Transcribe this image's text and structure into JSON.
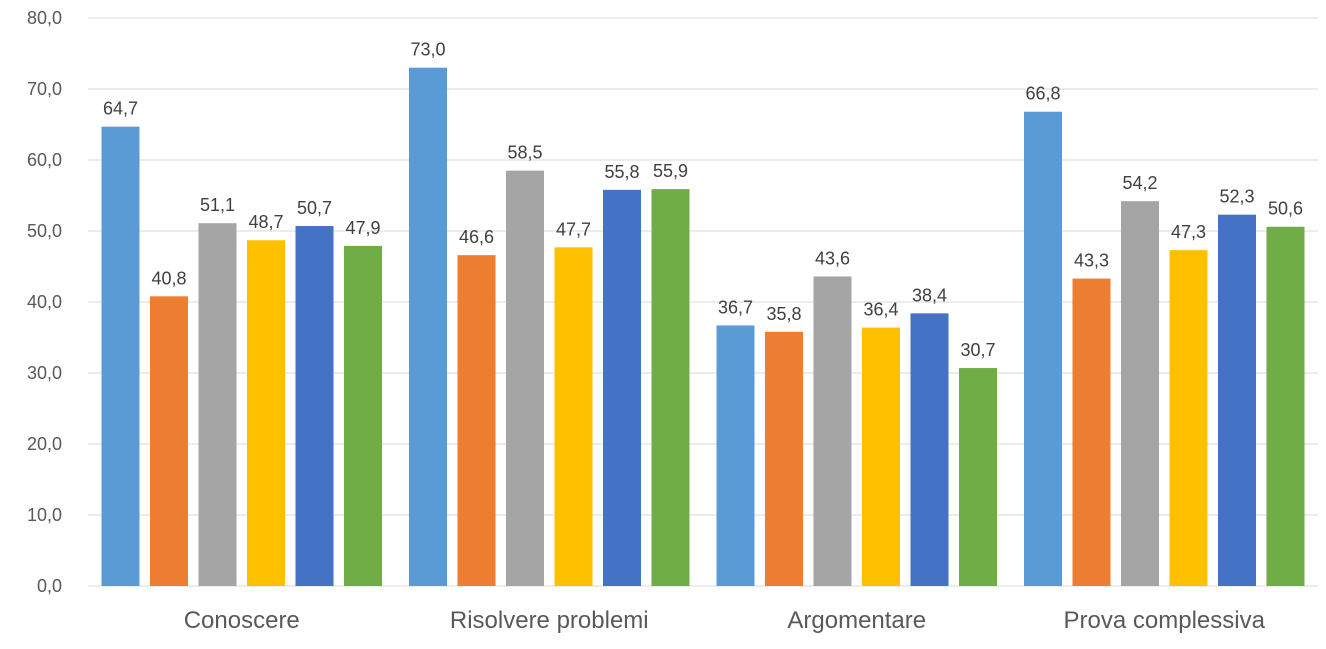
{
  "chart_data": {
    "type": "bar",
    "title": "",
    "xlabel": "",
    "ylabel": "",
    "ylim": [
      0,
      80
    ],
    "yticks": [
      "0,0",
      "10,0",
      "20,0",
      "30,0",
      "40,0",
      "50,0",
      "60,0",
      "70,0",
      "80,0"
    ],
    "grid": true,
    "legend": "none",
    "categories": [
      "Conoscere",
      "Risolvere problemi",
      "Argomentare",
      "Prova complessiva"
    ],
    "series": [
      {
        "color": "#5b9bd5",
        "values": [
          64.7,
          73.0,
          36.7,
          66.8
        ],
        "labels": [
          "64,7",
          "73,0",
          "36,7",
          "66,8"
        ]
      },
      {
        "color": "#ed7d31",
        "values": [
          40.8,
          46.6,
          35.8,
          43.3
        ],
        "labels": [
          "40,8",
          "46,6",
          "35,8",
          "43,3"
        ]
      },
      {
        "color": "#a5a5a5",
        "values": [
          51.1,
          58.5,
          43.6,
          54.2
        ],
        "labels": [
          "51,1",
          "58,5",
          "43,6",
          "54,2"
        ]
      },
      {
        "color": "#ffc000",
        "values": [
          48.7,
          47.7,
          36.4,
          47.3
        ],
        "labels": [
          "48,7",
          "47,7",
          "36,4",
          "47,3"
        ]
      },
      {
        "color": "#4472c4",
        "values": [
          50.7,
          55.8,
          38.4,
          52.3
        ],
        "labels": [
          "50,7",
          "55,8",
          "38,4",
          "52,3"
        ]
      },
      {
        "color": "#70ad47",
        "values": [
          47.9,
          55.9,
          30.7,
          50.6
        ],
        "labels": [
          "47,9",
          "55,9",
          "30,7",
          "50,6"
        ]
      }
    ]
  }
}
